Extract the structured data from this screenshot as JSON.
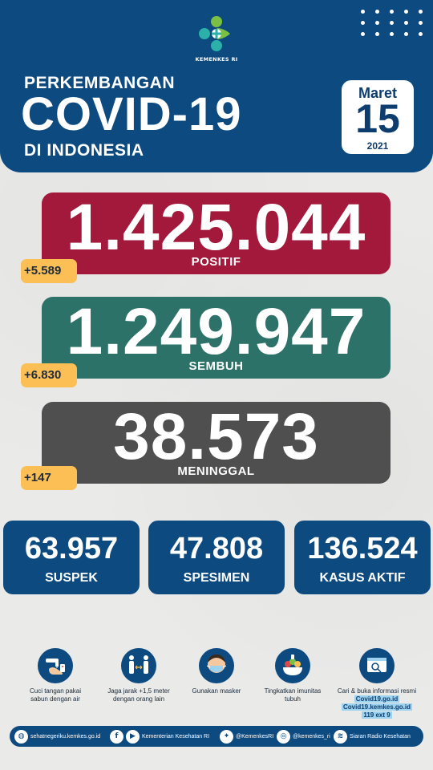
{
  "header": {
    "logo_text": "KEMENKES RI",
    "title_top": "PERKEMBANGAN",
    "title_main": "COVID-19",
    "title_bottom": "DI INDONESIA",
    "date": {
      "month": "Maret",
      "day": "15",
      "year": "2021"
    }
  },
  "stats": {
    "positive": {
      "value": "1.425.044",
      "label": "POSITIF",
      "delta": "+5.589",
      "color": "#a3193c"
    },
    "recovered": {
      "value": "1.249.947",
      "label": "SEMBUH",
      "delta": "+6.830",
      "color": "#2d7269"
    },
    "deaths": {
      "value": "38.573",
      "label": "MENINGGAL",
      "delta": "+147",
      "color": "#4f4f4f"
    }
  },
  "summary": [
    {
      "value": "63.957",
      "label": "SUSPEK"
    },
    {
      "value": "47.808",
      "label": "SPESIMEN"
    },
    {
      "value": "136.524",
      "label": "KASUS AKTIF"
    }
  ],
  "tips": [
    {
      "icon": "handwash-icon",
      "line1": "Cuci tangan pakai",
      "line2": "sabun dengan air"
    },
    {
      "icon": "distance-icon",
      "line1": "Jaga jarak +1,5 meter",
      "line2": "dengan orang lain"
    },
    {
      "icon": "mask-icon",
      "line1": "Gunakan masker",
      "line2": ""
    },
    {
      "icon": "immunity-icon",
      "line1": "Tingkatkan imunitas",
      "line2": "tubuh"
    },
    {
      "icon": "info-browser-icon",
      "line1": "Cari & buka informasi resmi",
      "link1": "Covid19.go.id",
      "link2": "Covid19.kemkes.go.id",
      "link3": "119 ext 9"
    }
  ],
  "footer": {
    "website": "sehatnegeriku.kemkes.go.id",
    "ministry": "Kementerian Kesehatan RI",
    "twitter": "@KemenkesRI",
    "instagram": "@kemenkes_ri",
    "radio": "Siaran Radio Kesehatan"
  },
  "colors": {
    "navy": "#0d4a80",
    "accent_yellow": "#fbbf56",
    "logo_green": "#7ac143",
    "logo_teal": "#2bb1a9"
  }
}
